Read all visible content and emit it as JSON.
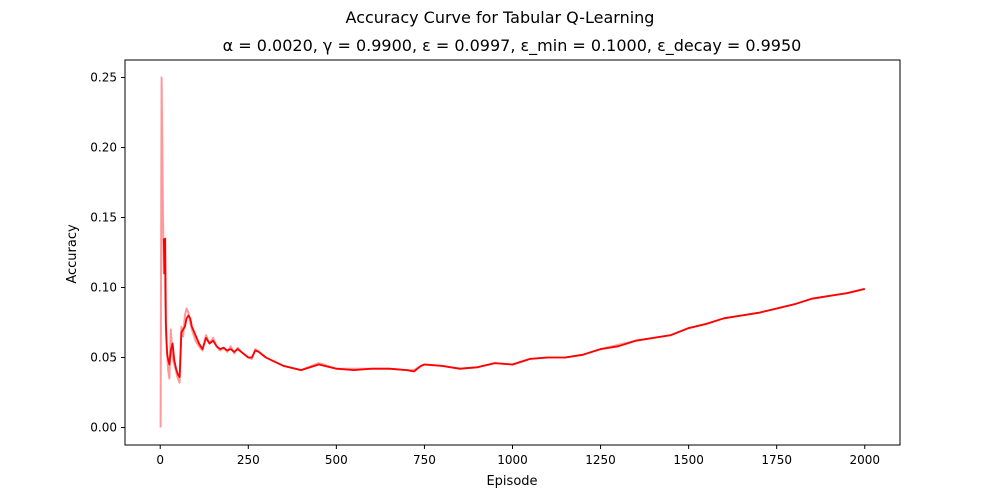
{
  "chart_data": {
    "type": "line",
    "title": "Accuracy Curve for Tabular Q-Learning",
    "subtitle": "α = 0.0020, γ = 0.9900, ε = 0.0997, ε_min = 0.1000, ε_decay = 0.9950",
    "xlabel": "Episode",
    "ylabel": "Accuracy",
    "xlim": [
      -100,
      2100
    ],
    "ylim": [
      -0.0125,
      0.2625
    ],
    "x_ticks": [
      0,
      250,
      500,
      750,
      1000,
      1250,
      1500,
      1750,
      2000
    ],
    "x_tick_labels": [
      "0",
      "250",
      "500",
      "750",
      "1000",
      "1250",
      "1500",
      "1750",
      "2000"
    ],
    "y_ticks": [
      0.0,
      0.05,
      0.1,
      0.15,
      0.2,
      0.25
    ],
    "y_tick_labels": [
      "0.00",
      "0.05",
      "0.10",
      "0.15",
      "0.20",
      "0.25"
    ],
    "grid": false,
    "legend": "none",
    "series": [
      {
        "color": "#ff9999",
        "style": "raw",
        "x": [
          1,
          4,
          6,
          8,
          10,
          12,
          14,
          16,
          18,
          20,
          23,
          26,
          30,
          35,
          40,
          45,
          50,
          55,
          60,
          65,
          70,
          75,
          80,
          85,
          90,
          100,
          110,
          120,
          130,
          140,
          150,
          160,
          170,
          180,
          190,
          200,
          210,
          220,
          230,
          240,
          250,
          260,
          270,
          280,
          300,
          350,
          400,
          450,
          500,
          550,
          600,
          650,
          700,
          720,
          740,
          750,
          800,
          850,
          900,
          950,
          1000,
          1050,
          1100,
          1150,
          1200,
          1250,
          1300,
          1350,
          1400,
          1450,
          1500,
          1550,
          1600,
          1650,
          1700,
          1750,
          1800,
          1850,
          1900,
          1950,
          2000
        ],
        "y": [
          0.0,
          0.25,
          0.2,
          0.15,
          0.11,
          0.13,
          0.09,
          0.07,
          0.06,
          0.05,
          0.04,
          0.035,
          0.07,
          0.05,
          0.045,
          0.04,
          0.035,
          0.032,
          0.072,
          0.065,
          0.08,
          0.085,
          0.082,
          0.075,
          0.07,
          0.062,
          0.058,
          0.055,
          0.066,
          0.06,
          0.064,
          0.058,
          0.055,
          0.057,
          0.054,
          0.058,
          0.053,
          0.057,
          0.054,
          0.052,
          0.05,
          0.049,
          0.056,
          0.054,
          0.05,
          0.044,
          0.041,
          0.046,
          0.042,
          0.042,
          0.042,
          0.042,
          0.041,
          0.041,
          0.044,
          0.045,
          0.044,
          0.042,
          0.043,
          0.046,
          0.045,
          0.049,
          0.05,
          0.05,
          0.052,
          0.056,
          0.059,
          0.062,
          0.064,
          0.066,
          0.071,
          0.074,
          0.078,
          0.08,
          0.082,
          0.085,
          0.088,
          0.092,
          0.094,
          0.096,
          0.099
        ]
      },
      {
        "color": "#ff0000",
        "style": "smoothed",
        "x": [
          10,
          12,
          14,
          16,
          18,
          20,
          23,
          26,
          30,
          35,
          40,
          45,
          50,
          55,
          60,
          65,
          70,
          75,
          80,
          85,
          90,
          100,
          110,
          120,
          130,
          140,
          150,
          160,
          170,
          180,
          190,
          200,
          210,
          220,
          230,
          240,
          250,
          260,
          270,
          280,
          300,
          350,
          400,
          450,
          500,
          550,
          600,
          650,
          700,
          720,
          740,
          750,
          800,
          850,
          900,
          950,
          1000,
          1050,
          1100,
          1150,
          1200,
          1250,
          1300,
          1350,
          1400,
          1450,
          1500,
          1550,
          1600,
          1650,
          1700,
          1750,
          1800,
          1850,
          1900,
          1950,
          2000
        ],
        "y": [
          0.135,
          0.11,
          0.135,
          0.075,
          0.06,
          0.052,
          0.048,
          0.045,
          0.055,
          0.06,
          0.048,
          0.042,
          0.038,
          0.036,
          0.068,
          0.07,
          0.072,
          0.078,
          0.08,
          0.078,
          0.072,
          0.066,
          0.06,
          0.056,
          0.064,
          0.06,
          0.062,
          0.058,
          0.056,
          0.057,
          0.055,
          0.056,
          0.054,
          0.056,
          0.054,
          0.052,
          0.05,
          0.05,
          0.055,
          0.054,
          0.05,
          0.044,
          0.041,
          0.045,
          0.042,
          0.041,
          0.042,
          0.042,
          0.041,
          0.04,
          0.044,
          0.045,
          0.044,
          0.042,
          0.043,
          0.046,
          0.045,
          0.049,
          0.05,
          0.05,
          0.052,
          0.056,
          0.058,
          0.062,
          0.064,
          0.066,
          0.071,
          0.074,
          0.078,
          0.08,
          0.082,
          0.085,
          0.088,
          0.092,
          0.094,
          0.096,
          0.099
        ]
      }
    ]
  }
}
